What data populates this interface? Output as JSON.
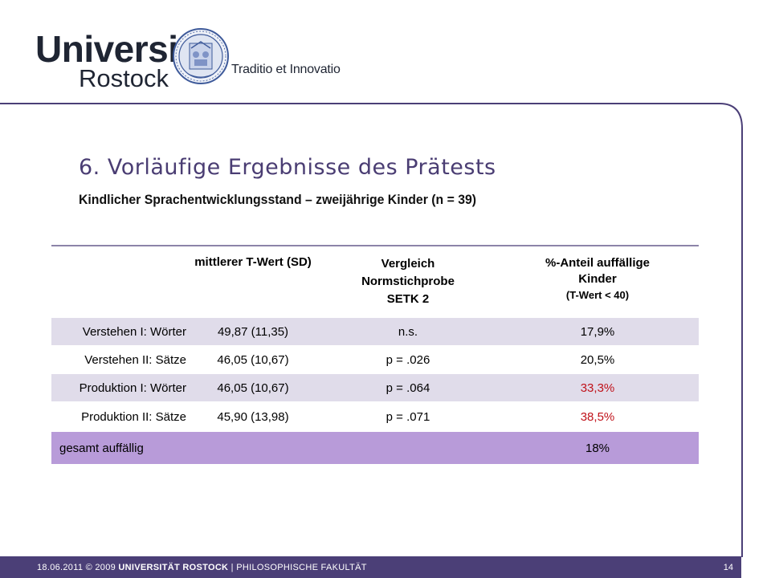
{
  "header": {
    "logo_line1": "Universität",
    "logo_line2": "Rostock",
    "motto": "Traditio et Innovatio",
    "seal_icon": "university-seal"
  },
  "slide": {
    "title": "6. Vorläufige Ergebnisse des Prätests",
    "subtitle": "Kindlicher Sprachentwicklungsstand – zweijährige Kinder (n = 39)"
  },
  "table": {
    "columns": {
      "c1": "mittlerer T-Wert (SD)",
      "c2_line1": "Vergleich",
      "c2_line2": "Normstichprobe",
      "c2_line3": "SETK 2",
      "c3_line1": "%-Anteil auffällige",
      "c3_line2": "Kinder",
      "c3_line3": "(T-Wert < 40)"
    },
    "rows": [
      {
        "label": "Verstehen I: Wörter",
        "mean": "49,87 (11,35)",
        "compare": "n.s.",
        "percent": "17,9%"
      },
      {
        "label": "Verstehen II: Sätze",
        "mean": "46,05 (10,67)",
        "compare": "p = .026",
        "percent": "20,5%"
      },
      {
        "label": "Produktion I: Wörter",
        "mean": "46,05 (10,67)",
        "compare": "p = .064",
        "percent": "33,3%"
      },
      {
        "label": "Produktion II: Sätze",
        "mean": "45,90 (13,98)",
        "compare": "p = .071",
        "percent": "38,5%"
      }
    ],
    "total": {
      "label": "gesamt auffällig",
      "percent": "18%"
    }
  },
  "colors": {
    "accent": "#4b3f77",
    "band": "#e0dcea",
    "total_row": "#b89bd9",
    "highlight": "#c0121a"
  },
  "footer": {
    "date": "18.06.2011",
    "copyright": "© 2009",
    "university": "UNIVERSITÄT ROSTOCK",
    "separator": "|",
    "faculty": "PHILOSOPHISCHE FAKULTÄT",
    "page": "14"
  }
}
